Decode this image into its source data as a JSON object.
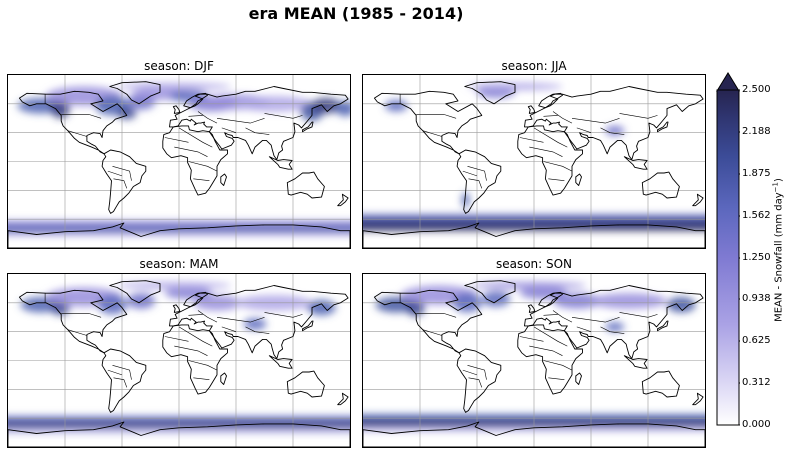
{
  "title": "era MEAN (1985 - 2014)",
  "panels": [
    {
      "id": "djf",
      "title": "season: DJF"
    },
    {
      "id": "jja",
      "title": "season: JJA"
    },
    {
      "id": "mam",
      "title": "season: MAM"
    },
    {
      "id": "son",
      "title": "season: SON"
    }
  ],
  "colorbar": {
    "label_prefix": "MEAN - Snowfall (mm day",
    "label_exp": "−1",
    "label_suffix": ")",
    "ticks": [
      "2.500",
      "2.188",
      "1.875",
      "1.562",
      "1.250",
      "0.938",
      "0.625",
      "0.312",
      "0.000"
    ],
    "extend": "max",
    "colors": [
      "#ffffff",
      "#e6e3f7",
      "#c9c3ef",
      "#aea6e6",
      "#968ddc",
      "#7f7ad2",
      "#6b6dc8",
      "#5b67bd",
      "#4a5fb0",
      "#3f53a1",
      "#384690",
      "#333a7c",
      "#2d2f66",
      "#262450"
    ]
  }
}
